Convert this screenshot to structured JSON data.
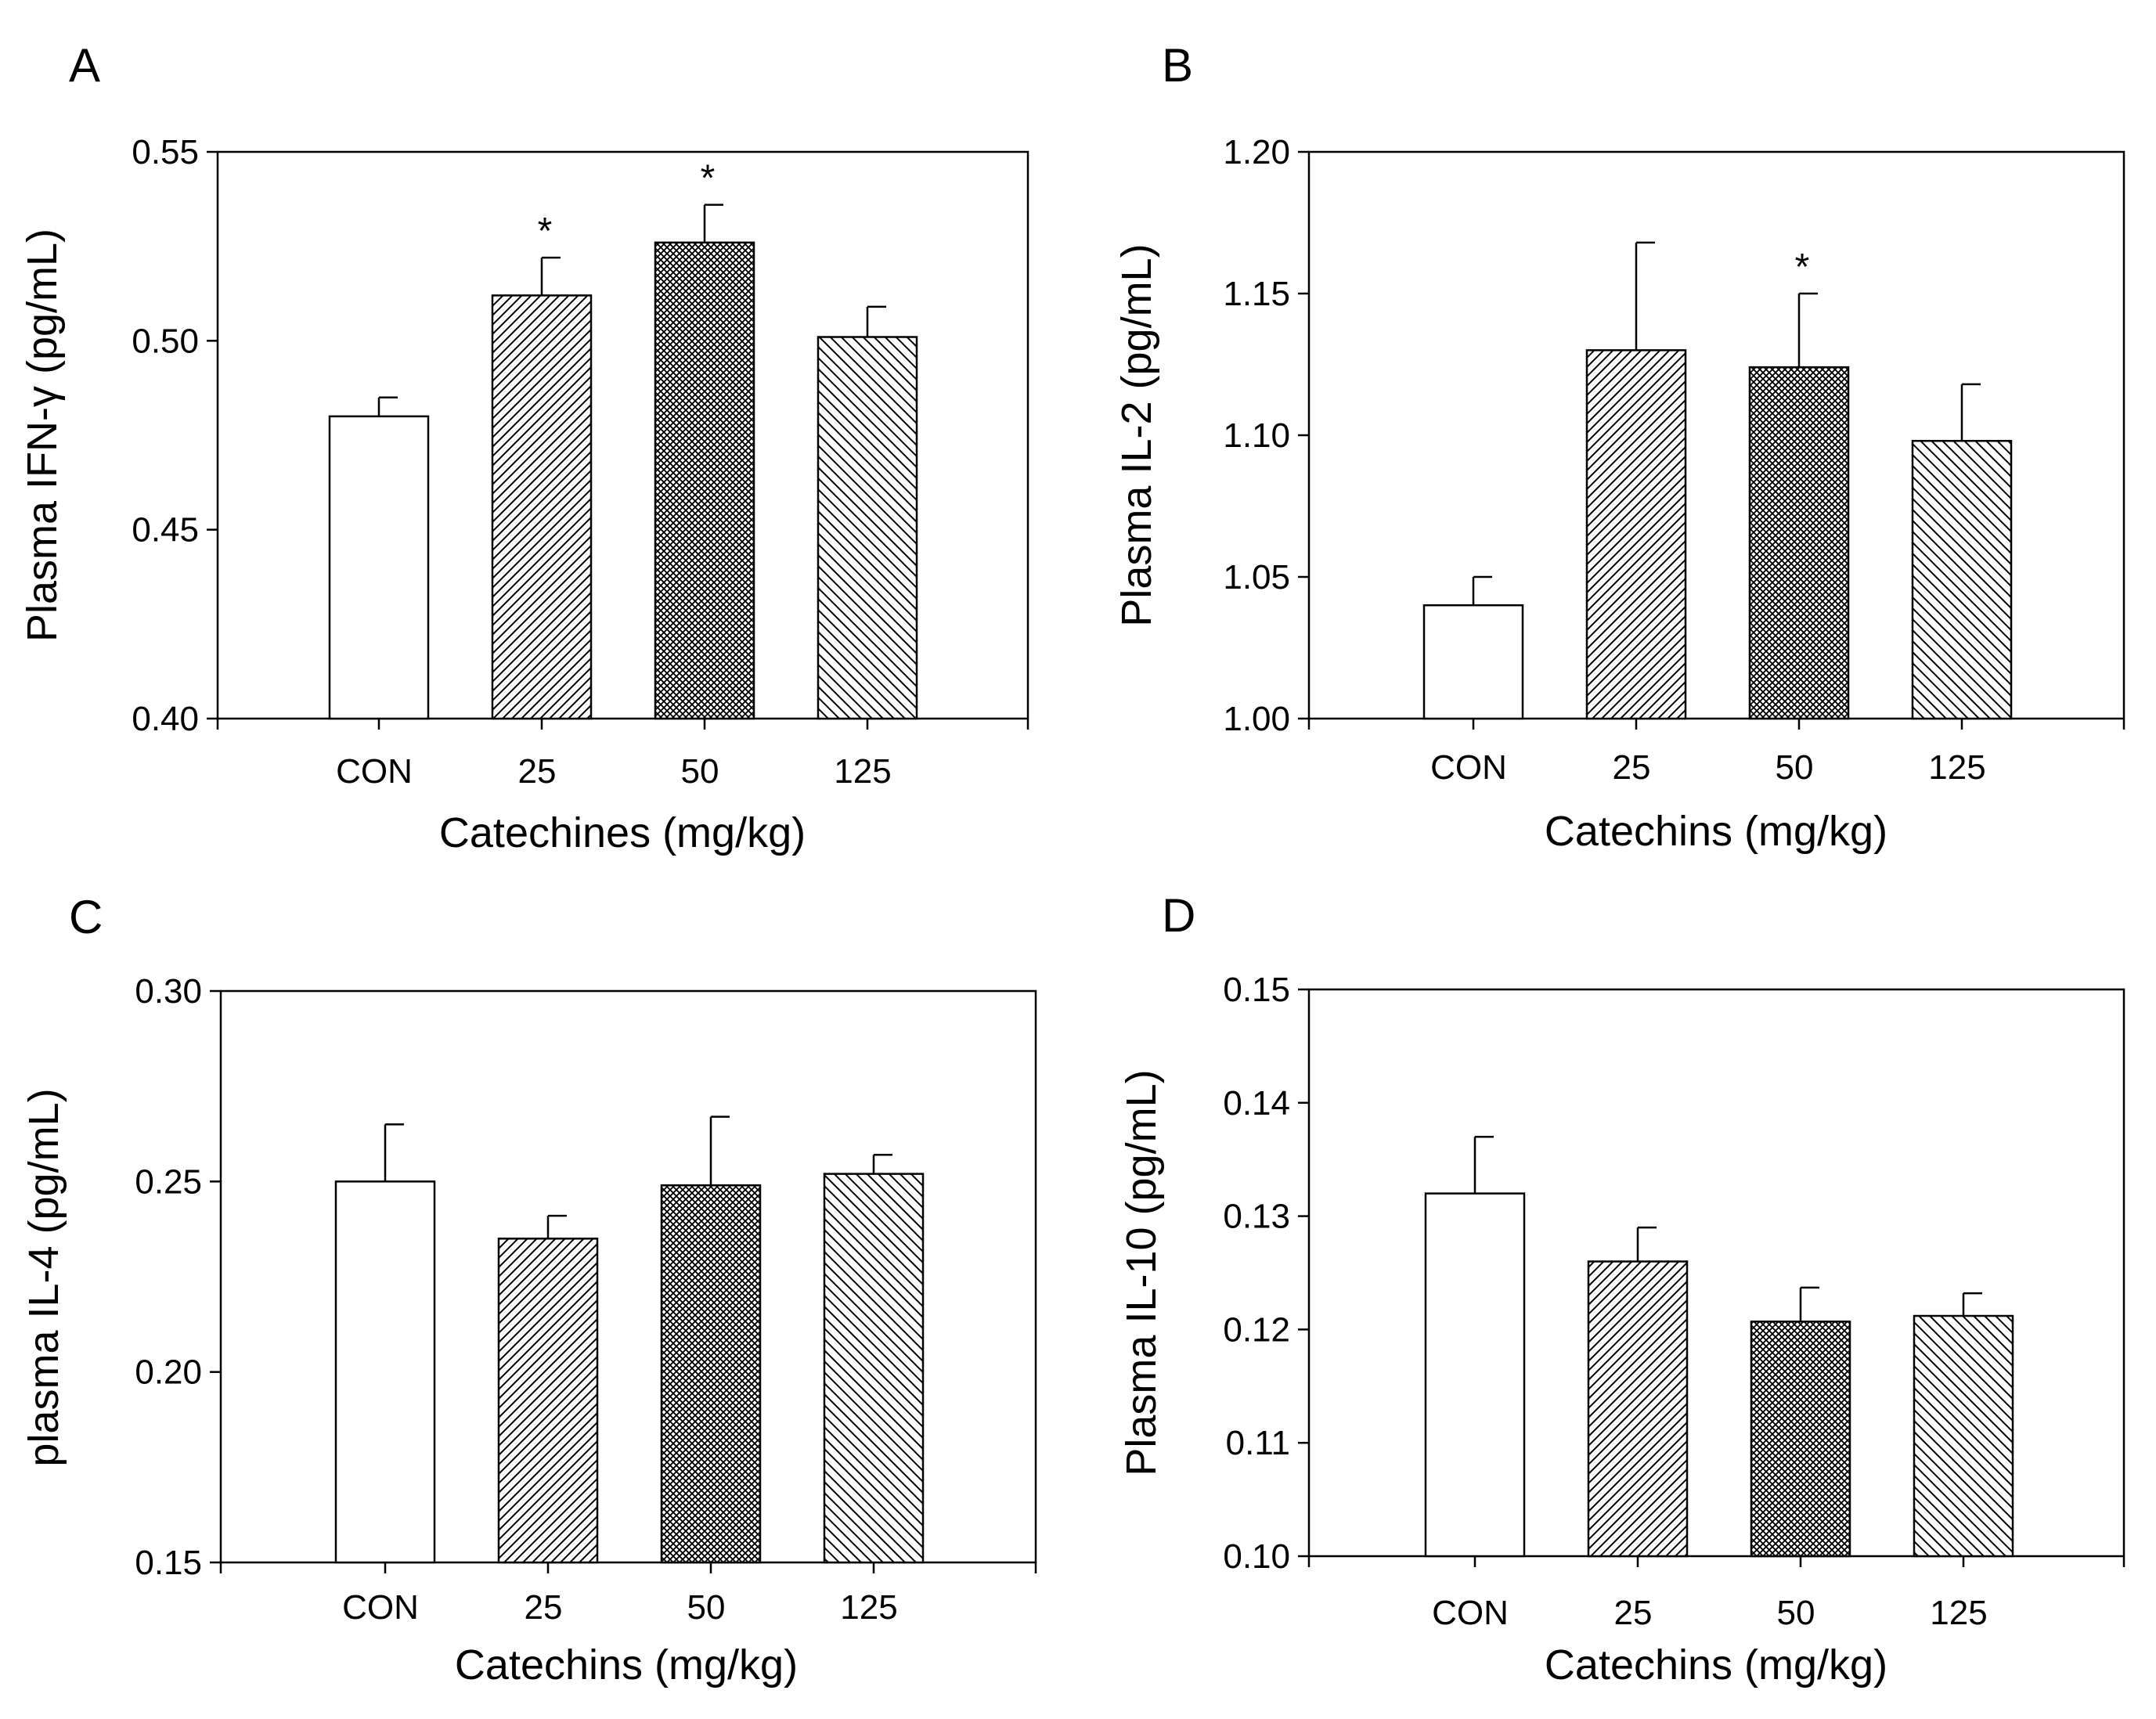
{
  "figure": {
    "panels": [
      "A",
      "B",
      "C",
      "D"
    ],
    "significance_marker": "*"
  },
  "colors": {
    "ink": "#000000",
    "background": "#ffffff"
  },
  "chart_data": [
    {
      "type": "bar",
      "panel": "A",
      "categories": [
        "CON",
        "25",
        "50",
        "125"
      ],
      "values": [
        0.48,
        0.512,
        0.526,
        0.501
      ],
      "errors": [
        0.005,
        0.01,
        0.01,
        0.008
      ],
      "significant": [
        false,
        true,
        true,
        false
      ],
      "patterns": [
        "none",
        "hatch-fine",
        "crosshatch",
        "hatch-back"
      ],
      "xlabel": "Catechines (mg/kg)",
      "ylabel": "Plasma IFN-γ (pg/mL)",
      "ylim": [
        0.4,
        0.55
      ],
      "yticks": [
        "0.40",
        "0.45",
        "0.50",
        "0.55"
      ]
    },
    {
      "type": "bar",
      "panel": "B",
      "categories": [
        "CON",
        "25",
        "50",
        "125"
      ],
      "values": [
        1.04,
        1.13,
        1.124,
        1.098
      ],
      "errors": [
        0.01,
        0.038,
        0.026,
        0.02
      ],
      "significant": [
        false,
        false,
        true,
        false
      ],
      "patterns": [
        "none",
        "hatch-fine",
        "crosshatch",
        "hatch-back"
      ],
      "xlabel": "Catechins (mg/kg)",
      "ylabel": "Plasma IL-2 (pg/mL)",
      "ylim": [
        1.0,
        1.2
      ],
      "yticks": [
        "1.00",
        "1.05",
        "1.10",
        "1.15",
        "1.20"
      ]
    },
    {
      "type": "bar",
      "panel": "C",
      "categories": [
        "CON",
        "25",
        "50",
        "125"
      ],
      "values": [
        0.25,
        0.235,
        0.249,
        0.252
      ],
      "errors": [
        0.015,
        0.006,
        0.018,
        0.005
      ],
      "significant": [
        false,
        false,
        false,
        false
      ],
      "patterns": [
        "none",
        "hatch-fine",
        "crosshatch",
        "hatch-back"
      ],
      "xlabel": "Catechins (mg/kg)",
      "ylabel": "plasma IL-4 (pg/mL)",
      "ylim": [
        0.15,
        0.3
      ],
      "yticks": [
        "0.15",
        "0.20",
        "0.25",
        "0.30"
      ]
    },
    {
      "type": "bar",
      "panel": "D",
      "categories": [
        "CON",
        "25",
        "50",
        "125"
      ],
      "values": [
        0.132,
        0.126,
        0.1207,
        0.1212
      ],
      "errors": [
        0.005,
        0.003,
        0.003,
        0.002
      ],
      "significant": [
        false,
        false,
        false,
        false
      ],
      "patterns": [
        "none",
        "hatch-fine",
        "crosshatch",
        "hatch-back"
      ],
      "xlabel": "Catechins (mg/kg)",
      "ylabel": "Plasma IL-10 (pg/mL)",
      "ylim": [
        0.1,
        0.15
      ],
      "yticks": [
        "0.10",
        "0.11",
        "0.12",
        "0.13",
        "0.14",
        "0.15"
      ]
    }
  ]
}
